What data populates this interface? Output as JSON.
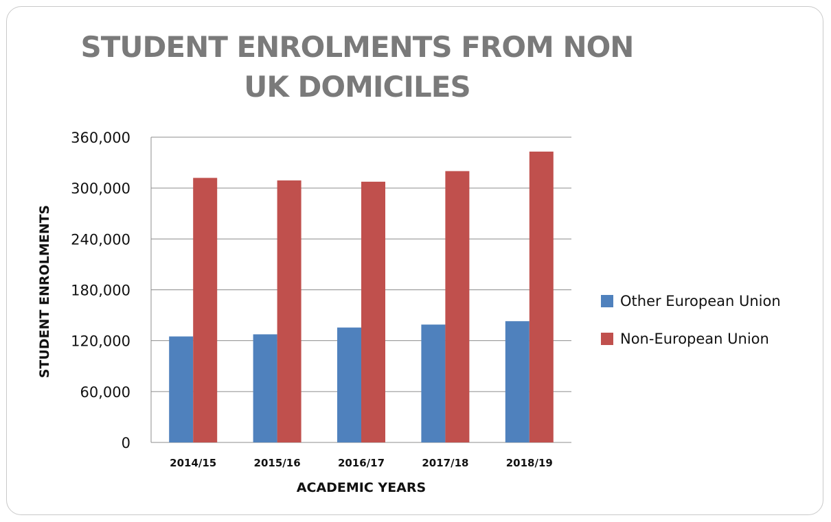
{
  "chart_data": {
    "type": "bar",
    "title": "STUDENT ENROLMENTS FROM NON UK DOMICILES",
    "xlabel": "ACADEMIC YEARS",
    "ylabel": "STUDENT ENROLMENTS",
    "categories": [
      "2014/15",
      "2015/16",
      "2016/17",
      "2017/18",
      "2018/19"
    ],
    "series": [
      {
        "name": "Other European Union",
        "color": "#4f81bd",
        "values": [
          125000,
          127500,
          135500,
          139000,
          143000
        ]
      },
      {
        "name": "Non-European Union",
        "color": "#c0504d",
        "values": [
          312000,
          309000,
          307500,
          320000,
          343000
        ]
      }
    ],
    "ylim": [
      0,
      360000
    ],
    "yticks": [
      "0",
      "60,000",
      "120,000",
      "180,000",
      "240,000",
      "300,000",
      "360,000"
    ],
    "ytick_values": [
      0,
      60000,
      120000,
      180000,
      240000,
      300000,
      360000
    ],
    "grid": true,
    "legend_position": "right"
  }
}
